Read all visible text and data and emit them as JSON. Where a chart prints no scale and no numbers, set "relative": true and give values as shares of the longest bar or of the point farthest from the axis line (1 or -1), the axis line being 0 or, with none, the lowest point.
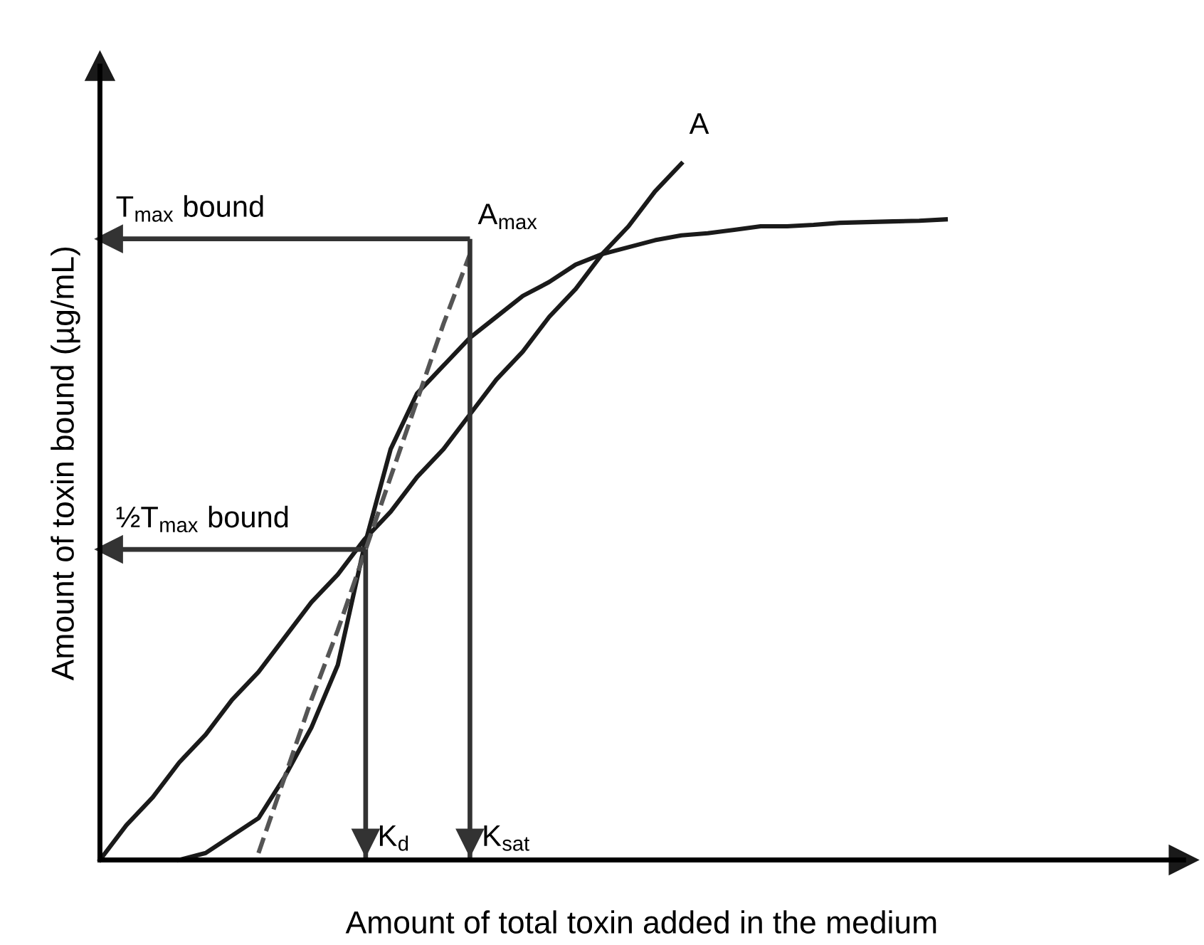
{
  "chart_data": {
    "type": "line",
    "relative": true,
    "xlabel": "Amount of total toxin added in the medium",
    "ylabel": "Amount of toxin bound (µg/mL)",
    "categories": [
      null,
      null,
      null,
      null,
      null,
      null,
      null,
      null,
      null,
      null,
      null,
      null,
      null,
      null,
      null,
      null,
      null,
      null,
      null,
      null,
      null,
      null,
      null,
      null,
      null,
      null,
      null,
      null,
      null,
      null,
      null,
      null,
      null,
      null,
      null,
      null,
      null,
      null,
      null,
      null,
      null,
      null
    ],
    "series": [
      {
        "color": "#1a1a1a",
        "line_style": "solid",
        "values": [
          null,
          null,
          null,
          0,
          0.01,
          0.035,
          0.06,
          0.12,
          0.19,
          0.28,
          0.45,
          0.59,
          0.67,
          0.71,
          0.75,
          0.78,
          0.81,
          0.83,
          0.855,
          0.87,
          0.88,
          0.89,
          0.897,
          0.9,
          0.905,
          0.91,
          0.91,
          0.912,
          0.915,
          0.916,
          0.917,
          0.918,
          0.92,
          null,
          null,
          null,
          null,
          null,
          null,
          null,
          null,
          null
        ]
      },
      {
        "name": "A",
        "color": "#1a1a1a",
        "line_style": "solid",
        "values": [
          0,
          0.05,
          0.09,
          0.14,
          0.18,
          0.23,
          0.27,
          0.32,
          0.37,
          0.41,
          0.46,
          0.5,
          0.55,
          0.59,
          0.64,
          0.69,
          0.73,
          0.78,
          0.82,
          0.87,
          0.91,
          0.96,
          1,
          null,
          null,
          null,
          null,
          null,
          null,
          null,
          null,
          null,
          null,
          null,
          null,
          null,
          null,
          null,
          null,
          null,
          null,
          null
        ]
      },
      {
        "name": "A$_{max}$",
        "color": "#555555",
        "line_style": "dashed",
        "values": [
          null,
          null,
          null,
          null,
          null,
          null,
          0.01,
          0.12,
          0.23,
          0.33,
          0.44,
          0.55,
          0.66,
          0.77,
          0.87,
          null,
          null,
          null,
          null,
          null,
          null,
          null,
          null,
          null,
          null,
          null,
          null,
          null,
          null,
          null,
          null,
          null,
          null,
          null,
          null,
          null,
          null,
          null,
          null,
          null,
          null,
          null
        ]
      }
    ],
    "ref_lines": [
      {
        "axis": "y",
        "value": 0.892,
        "label": "T$_{max}$ bound",
        "color": "#333333"
      },
      {
        "axis": "y",
        "value": 0.446,
        "label": "½T$_{max}$ bound",
        "color": "#333333"
      }
    ],
    "annotations": [
      "K$_{sat}$",
      "K$_{d}$"
    ]
  }
}
